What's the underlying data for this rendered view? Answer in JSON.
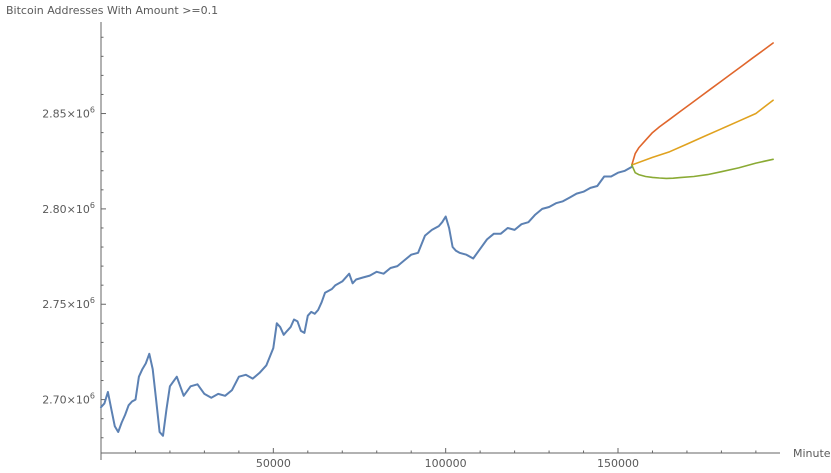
{
  "chart_data": {
    "type": "line",
    "title": "Bitcoin Addresses With Amount >=0.1",
    "xlabel": "Minute",
    "ylabel": "",
    "xlim": [
      0,
      197000
    ],
    "ylim": [
      2672000,
      2898000
    ],
    "x_ticks": [
      50000,
      100000,
      150000
    ],
    "x_tick_labels": [
      "50000",
      "100000",
      "150000"
    ],
    "y_ticks": [
      2700000,
      2750000,
      2800000,
      2850000
    ],
    "y_tick_labels": [
      {
        "mantissa": "2.70",
        "exp": "6"
      },
      {
        "mantissa": "2.75",
        "exp": "6"
      },
      {
        "mantissa": "2.80",
        "exp": "6"
      },
      {
        "mantissa": "2.85",
        "exp": "6"
      }
    ],
    "grid": false,
    "series": [
      {
        "color": "#5c81b3",
        "x": [
          0,
          1000,
          2000,
          3000,
          4000,
          5000,
          6000,
          7000,
          8000,
          9000,
          10000,
          11000,
          12000,
          13000,
          14000,
          15000,
          16000,
          17000,
          18000,
          19000,
          20000,
          22000,
          24000,
          26000,
          28000,
          30000,
          32000,
          34000,
          36000,
          38000,
          40000,
          42000,
          44000,
          46000,
          48000,
          50000,
          51000,
          52000,
          53000,
          54000,
          55000,
          56000,
          57000,
          58000,
          59000,
          60000,
          61000,
          62000,
          63000,
          64000,
          65000,
          66000,
          67000,
          68000,
          70000,
          72000,
          73000,
          74000,
          76000,
          78000,
          80000,
          82000,
          84000,
          86000,
          88000,
          90000,
          92000,
          94000,
          96000,
          98000,
          99000,
          100000,
          101000,
          102000,
          103000,
          104000,
          106000,
          108000,
          110000,
          112000,
          114000,
          116000,
          118000,
          120000,
          122000,
          124000,
          126000,
          128000,
          130000,
          132000,
          134000,
          136000,
          138000,
          140000,
          142000,
          144000,
          146000,
          148000,
          150000,
          152000,
          154000
        ],
        "y": [
          2696000,
          2698000,
          2704000,
          2695000,
          2686000,
          2683000,
          2688000,
          2692000,
          2697000,
          2699000,
          2700000,
          2712000,
          2716000,
          2719000,
          2724000,
          2716000,
          2700000,
          2683000,
          2681000,
          2695000,
          2707000,
          2712000,
          2702000,
          2707000,
          2708000,
          2703000,
          2701000,
          2703000,
          2702000,
          2705000,
          2712000,
          2713000,
          2711000,
          2714000,
          2718000,
          2727000,
          2740000,
          2738000,
          2734000,
          2736000,
          2738000,
          2742000,
          2741000,
          2736000,
          2735000,
          2744000,
          2746000,
          2745000,
          2747000,
          2751000,
          2756000,
          2757000,
          2758000,
          2760000,
          2762000,
          2766000,
          2761000,
          2763000,
          2764000,
          2765000,
          2767000,
          2766000,
          2769000,
          2770000,
          2773000,
          2776000,
          2777000,
          2786000,
          2789000,
          2791000,
          2793000,
          2796000,
          2790000,
          2780000,
          2778000,
          2777000,
          2776000,
          2774000,
          2779000,
          2784000,
          2787000,
          2787000,
          2790000,
          2789000,
          2792000,
          2793000,
          2797000,
          2800000,
          2801000,
          2803000,
          2804000,
          2806000,
          2808000,
          2809000,
          2811000,
          2812000,
          2817000,
          2817000,
          2819000,
          2820000,
          2822000
        ]
      },
      {
        "color": "#e0662c",
        "x": [
          154000,
          155000,
          156000,
          158000,
          160000,
          162000,
          165000,
          168000,
          171000,
          174000,
          177000,
          180000,
          183000,
          186000,
          189000,
          192000,
          195000
        ],
        "y": [
          2823000,
          2829000,
          2832000,
          2836000,
          2840000,
          2843000,
          2847000,
          2851000,
          2855000,
          2859000,
          2863000,
          2867000,
          2871000,
          2875000,
          2879000,
          2883000,
          2887000
        ]
      },
      {
        "color": "#e0a21f",
        "x": [
          154000,
          160000,
          165000,
          170000,
          175000,
          180000,
          185000,
          190000,
          195000
        ],
        "y": [
          2823000,
          2827000,
          2830000,
          2834000,
          2838000,
          2842000,
          2846000,
          2850000,
          2857000
        ]
      },
      {
        "color": "#8aaa34",
        "x": [
          154000,
          155000,
          156000,
          158000,
          160000,
          162000,
          164000,
          166000,
          168000,
          172000,
          176000,
          180000,
          185000,
          190000,
          195000
        ],
        "y": [
          2823000,
          2819000,
          2818000,
          2817000,
          2816500,
          2816200,
          2816000,
          2816100,
          2816400,
          2817000,
          2818000,
          2819500,
          2821500,
          2824000,
          2826000
        ]
      }
    ]
  }
}
